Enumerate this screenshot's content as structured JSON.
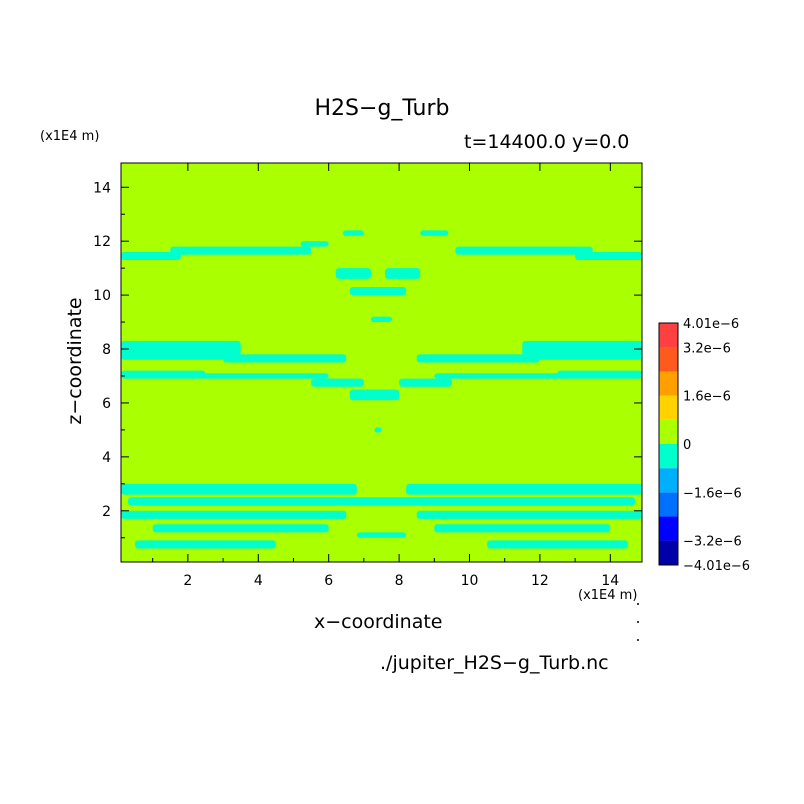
{
  "chart_data": {
    "type": "heatmap",
    "title": "H2S−g_Turb",
    "subtitle": "t=14400.0 y=0.0",
    "xlabel": "x−coordinate",
    "ylabel": "z−coordinate",
    "x_unit": "(x1E4 m)",
    "y_unit": "(x1E4 m)",
    "source_file": "./jupiter_H2S−g_Turb.nc",
    "xlim": [
      0.1,
      14.9
    ],
    "ylim": [
      0.1,
      14.9
    ],
    "x_ticks": [
      2,
      4,
      6,
      8,
      10,
      12,
      14
    ],
    "y_ticks": [
      2,
      4,
      6,
      8,
      10,
      12,
      14
    ],
    "grid": false,
    "background_value": 0,
    "colorbar": {
      "levels": [
        -4.01e-06,
        -3.2e-06,
        -2.4e-06,
        -1.6e-06,
        -8e-07,
        0,
        8e-07,
        1.6e-06,
        2.4e-06,
        3.2e-06,
        4.01e-06
      ],
      "colors": [
        "#0000a8",
        "#0000ff",
        "#0070ff",
        "#00b0ff",
        "#00ffcc",
        "#aaff00",
        "#ffd200",
        "#ffa000",
        "#ff5a1e",
        "#ff4040"
      ],
      "tick_labels": [
        {
          "value": 4.01e-06,
          "label": "4.01e−6"
        },
        {
          "value": 3.2e-06,
          "label": "3.2e−6"
        },
        {
          "value": 1.6e-06,
          "label": "1.6e−6"
        },
        {
          "value": 0,
          "label": "0"
        },
        {
          "value": -1.6e-06,
          "label": "−1.6e−6"
        },
        {
          "value": -3.2e-06,
          "label": "−3.2e−6"
        },
        {
          "value": -4.01e-06,
          "label": "−4.01e−6"
        }
      ]
    },
    "negative_regions": [
      {
        "x0": 0.1,
        "x1": 1.8,
        "z0": 11.3,
        "z1": 11.6
      },
      {
        "x0": 1.5,
        "x1": 5.5,
        "z0": 11.5,
        "z1": 11.8
      },
      {
        "x0": 5.2,
        "x1": 6.0,
        "z0": 11.8,
        "z1": 12.0
      },
      {
        "x0": 6.4,
        "x1": 7.0,
        "z0": 12.2,
        "z1": 12.4
      },
      {
        "x0": 8.6,
        "x1": 9.4,
        "z0": 12.2,
        "z1": 12.4
      },
      {
        "x0": 9.6,
        "x1": 13.5,
        "z0": 11.5,
        "z1": 11.8
      },
      {
        "x0": 13.0,
        "x1": 14.9,
        "z0": 11.3,
        "z1": 11.6
      },
      {
        "x0": 6.2,
        "x1": 7.2,
        "z0": 10.6,
        "z1": 11.0
      },
      {
        "x0": 7.6,
        "x1": 8.6,
        "z0": 10.6,
        "z1": 11.0
      },
      {
        "x0": 6.6,
        "x1": 8.2,
        "z0": 10.0,
        "z1": 10.3
      },
      {
        "x0": 7.2,
        "x1": 7.8,
        "z0": 9.0,
        "z1": 9.2
      },
      {
        "x0": 0.1,
        "x1": 3.5,
        "z0": 7.6,
        "z1": 8.3
      },
      {
        "x0": 3.0,
        "x1": 6.5,
        "z0": 7.5,
        "z1": 7.8
      },
      {
        "x0": 0.1,
        "x1": 2.5,
        "z0": 6.9,
        "z1": 7.2
      },
      {
        "x0": 2.3,
        "x1": 6.0,
        "z0": 6.9,
        "z1": 7.1
      },
      {
        "x0": 5.5,
        "x1": 7.0,
        "z0": 6.6,
        "z1": 6.9
      },
      {
        "x0": 6.6,
        "x1": 8.0,
        "z0": 6.1,
        "z1": 6.5
      },
      {
        "x0": 11.5,
        "x1": 14.9,
        "z0": 7.6,
        "z1": 8.3
      },
      {
        "x0": 8.5,
        "x1": 12.0,
        "z0": 7.5,
        "z1": 7.8
      },
      {
        "x0": 12.5,
        "x1": 14.9,
        "z0": 6.9,
        "z1": 7.2
      },
      {
        "x0": 9.0,
        "x1": 12.7,
        "z0": 6.9,
        "z1": 7.1
      },
      {
        "x0": 8.0,
        "x1": 9.5,
        "z0": 6.6,
        "z1": 6.9
      },
      {
        "x0": 7.3,
        "x1": 7.5,
        "z0": 4.9,
        "z1": 5.1
      },
      {
        "x0": 0.1,
        "x1": 6.8,
        "z0": 2.6,
        "z1": 3.0
      },
      {
        "x0": 8.2,
        "x1": 14.9,
        "z0": 2.6,
        "z1": 3.0
      },
      {
        "x0": 0.3,
        "x1": 14.7,
        "z0": 2.2,
        "z1": 2.5
      },
      {
        "x0": 0.1,
        "x1": 6.5,
        "z0": 1.7,
        "z1": 2.0
      },
      {
        "x0": 8.5,
        "x1": 14.9,
        "z0": 1.7,
        "z1": 2.0
      },
      {
        "x0": 1.0,
        "x1": 6.0,
        "z0": 1.2,
        "z1": 1.5
      },
      {
        "x0": 9.0,
        "x1": 14.0,
        "z0": 1.2,
        "z1": 1.5
      },
      {
        "x0": 6.8,
        "x1": 8.2,
        "z0": 1.0,
        "z1": 1.2
      },
      {
        "x0": 0.5,
        "x1": 4.5,
        "z0": 0.6,
        "z1": 0.9
      },
      {
        "x0": 10.5,
        "x1": 14.5,
        "z0": 0.6,
        "z1": 0.9
      }
    ]
  }
}
